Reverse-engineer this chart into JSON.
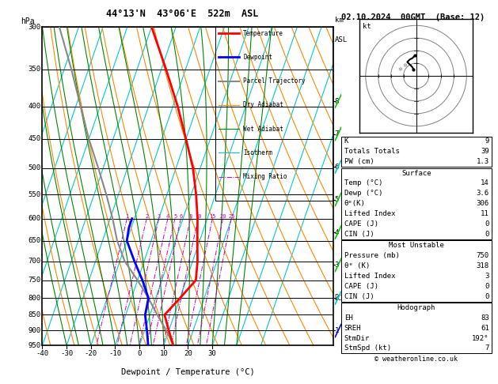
{
  "title_left": "44°13'N  43°06'E  522m  ASL",
  "title_right": "02.10.2024  00GMT  (Base: 12)",
  "xlabel": "Dewpoint / Temperature (°C)",
  "pressure_ticks": [
    300,
    350,
    400,
    450,
    500,
    550,
    600,
    650,
    700,
    750,
    800,
    850,
    900,
    950
  ],
  "temp_ticks": [
    -40,
    -30,
    -20,
    -10,
    0,
    10,
    20,
    30
  ],
  "km_ticks": [
    1,
    2,
    3,
    4,
    5,
    6,
    7,
    8
  ],
  "lcl_pressure": 800,
  "p_min": 300,
  "p_max": 950,
  "t_min": -40,
  "t_max": 35,
  "skew_factor": 45.0,
  "temperature_profile": {
    "pressure": [
      950,
      900,
      850,
      800,
      750,
      700,
      650,
      600,
      550,
      500,
      450,
      400,
      350,
      300
    ],
    "temp": [
      14,
      10,
      6,
      10,
      14,
      12,
      9,
      6,
      2,
      -3,
      -10,
      -18,
      -28,
      -40
    ]
  },
  "dewpoint_profile": {
    "pressure": [
      950,
      900,
      850,
      800,
      750,
      700,
      650,
      620,
      600
    ],
    "temp": [
      3.6,
      1,
      -2,
      -3,
      -8,
      -14,
      -20,
      -21,
      -21
    ]
  },
  "parcel_profile": {
    "pressure": [
      950,
      900,
      850,
      800,
      750,
      700,
      650,
      600,
      550,
      500,
      450,
      400,
      350,
      300
    ],
    "temp": [
      14,
      9,
      3,
      -3,
      -10,
      -18,
      -24,
      -29,
      -35,
      -42,
      -50,
      -58,
      -67,
      -78
    ]
  },
  "legend_items": [
    {
      "label": "Temperature",
      "color": "#ff0000",
      "lw": 2,
      "ls": "-"
    },
    {
      "label": "Dewpoint",
      "color": "#0000ff",
      "lw": 2,
      "ls": "-"
    },
    {
      "label": "Parcel Trajectory",
      "color": "#888888",
      "lw": 1.5,
      "ls": "-"
    },
    {
      "label": "Dry Adiabat",
      "color": "#ff8800",
      "lw": 0.8,
      "ls": "-"
    },
    {
      "label": "Wet Adiabat",
      "color": "#008800",
      "lw": 0.8,
      "ls": "-"
    },
    {
      "label": "Isotherm",
      "color": "#00cccc",
      "lw": 0.8,
      "ls": "-"
    },
    {
      "label": "Mixing Ratio",
      "color": "#cc00cc",
      "lw": 0.7,
      "ls": "-."
    }
  ],
  "mixing_ratio_values": [
    1,
    2,
    3,
    4,
    5,
    6,
    8,
    10,
    15,
    20,
    25
  ],
  "hodo_u": [
    -2,
    -3,
    -5,
    -7,
    -5,
    -3,
    -2,
    -1
  ],
  "hodo_v": [
    5,
    7,
    9,
    11,
    13,
    14,
    15,
    16
  ],
  "wind_barb_levels": [
    {
      "km": 8,
      "color": "#00cc00"
    },
    {
      "km": 7,
      "color": "#00cc00"
    },
    {
      "km": 6,
      "color": "#00cccc"
    },
    {
      "km": 5,
      "color": "#00cc00"
    },
    {
      "km": 4,
      "color": "#00cc00"
    },
    {
      "km": 3,
      "color": "#00cc00"
    },
    {
      "km": 2,
      "color": "#00cccc"
    },
    {
      "km": 1,
      "color": "#0000ff"
    }
  ],
  "stats": {
    "K": "9",
    "Totals Totals": "39",
    "PW (cm)": "1.3",
    "surf_temp": "14",
    "surf_dewp": "3.6",
    "surf_theta": "306",
    "surf_li": "11",
    "surf_cape": "0",
    "surf_cin": "0",
    "mu_pres": "750",
    "mu_theta": "318",
    "mu_li": "3",
    "mu_cape": "0",
    "mu_cin": "0",
    "hodo_eh": "83",
    "hodo_sreh": "61",
    "hodo_stmdir": "192°",
    "hodo_stmspd": "7"
  }
}
